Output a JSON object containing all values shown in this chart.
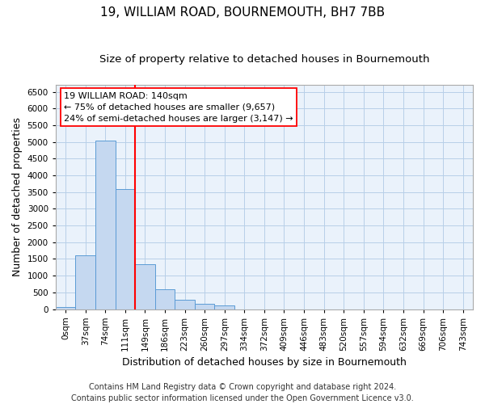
{
  "title": "19, WILLIAM ROAD, BOURNEMOUTH, BH7 7BB",
  "subtitle": "Size of property relative to detached houses in Bournemouth",
  "xlabel": "Distribution of detached houses by size in Bournemouth",
  "ylabel": "Number of detached properties",
  "categories": [
    "0sqm",
    "37sqm",
    "74sqm",
    "111sqm",
    "149sqm",
    "186sqm",
    "223sqm",
    "260sqm",
    "297sqm",
    "334sqm",
    "372sqm",
    "409sqm",
    "446sqm",
    "483sqm",
    "520sqm",
    "557sqm",
    "594sqm",
    "632sqm",
    "669sqm",
    "706sqm",
    "743sqm"
  ],
  "values": [
    50,
    1600,
    5050,
    3600,
    1350,
    600,
    290,
    150,
    110,
    0,
    0,
    0,
    0,
    0,
    0,
    0,
    0,
    0,
    0,
    0,
    0
  ],
  "bar_color": "#c5d8f0",
  "bar_edge_color": "#5b9bd5",
  "vline_pos": 3.5,
  "vline_color": "red",
  "annotation_text": "19 WILLIAM ROAD: 140sqm\n← 75% of detached houses are smaller (9,657)\n24% of semi-detached houses are larger (3,147) →",
  "ylim": [
    0,
    6700
  ],
  "yticks": [
    0,
    500,
    1000,
    1500,
    2000,
    2500,
    3000,
    3500,
    4000,
    4500,
    5000,
    5500,
    6000,
    6500
  ],
  "footer_line1": "Contains HM Land Registry data © Crown copyright and database right 2024.",
  "footer_line2": "Contains public sector information licensed under the Open Government Licence v3.0.",
  "background_color": "#ffffff",
  "plot_bg_color": "#eaf2fb",
  "grid_color": "#b8cfe8",
  "title_fontsize": 11,
  "subtitle_fontsize": 9.5,
  "axis_label_fontsize": 9,
  "tick_fontsize": 7.5,
  "annotation_fontsize": 8,
  "footer_fontsize": 7
}
